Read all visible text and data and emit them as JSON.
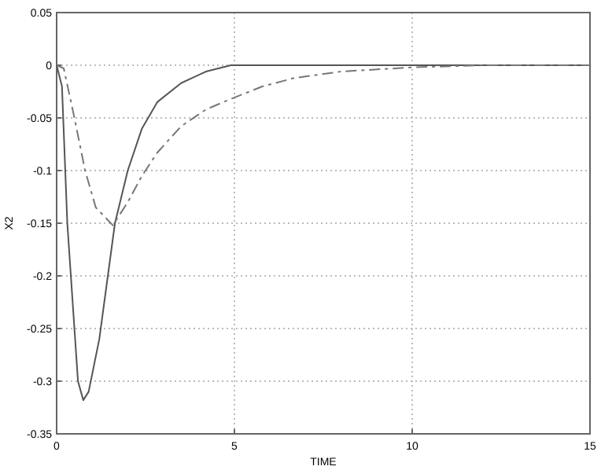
{
  "chart_data": {
    "type": "line",
    "xlabel": "TIME",
    "ylabel": "X2",
    "xlim": [
      0,
      15
    ],
    "ylim": [
      -0.35,
      0.05
    ],
    "xticks": [
      0,
      5,
      10,
      15
    ],
    "yticks": [
      0.05,
      0,
      -0.05,
      -0.1,
      -0.15,
      -0.2,
      -0.25,
      -0.3,
      -0.35
    ],
    "grid": true,
    "series": [
      {
        "color": "#555555",
        "line_style": "solid",
        "x": [
          0,
          0.15,
          0.3,
          0.4,
          0.6,
          0.75,
          0.9,
          1.2,
          1.64,
          2,
          2.4,
          2.83,
          3.5,
          4.2,
          4.9,
          6,
          15
        ],
        "values": [
          0,
          -0.02,
          -0.15,
          -0.2,
          -0.3,
          -0.318,
          -0.31,
          -0.26,
          -0.15,
          -0.1,
          -0.06,
          -0.035,
          -0.017,
          -0.006,
          0,
          0,
          0
        ]
      },
      {
        "color": "#777777",
        "line_style": "dashed",
        "x": [
          0,
          0.2,
          0.5,
          0.8,
          1.1,
          1.58,
          2,
          2.4,
          2.83,
          3.5,
          4.2,
          4.9,
          5.8,
          6.7,
          8,
          10,
          12,
          15
        ],
        "values": [
          0,
          -0.003,
          -0.05,
          -0.1,
          -0.135,
          -0.152,
          -0.13,
          -0.105,
          -0.083,
          -0.058,
          -0.042,
          -0.032,
          -0.02,
          -0.012,
          -0.006,
          -0.002,
          0,
          0
        ]
      }
    ]
  }
}
